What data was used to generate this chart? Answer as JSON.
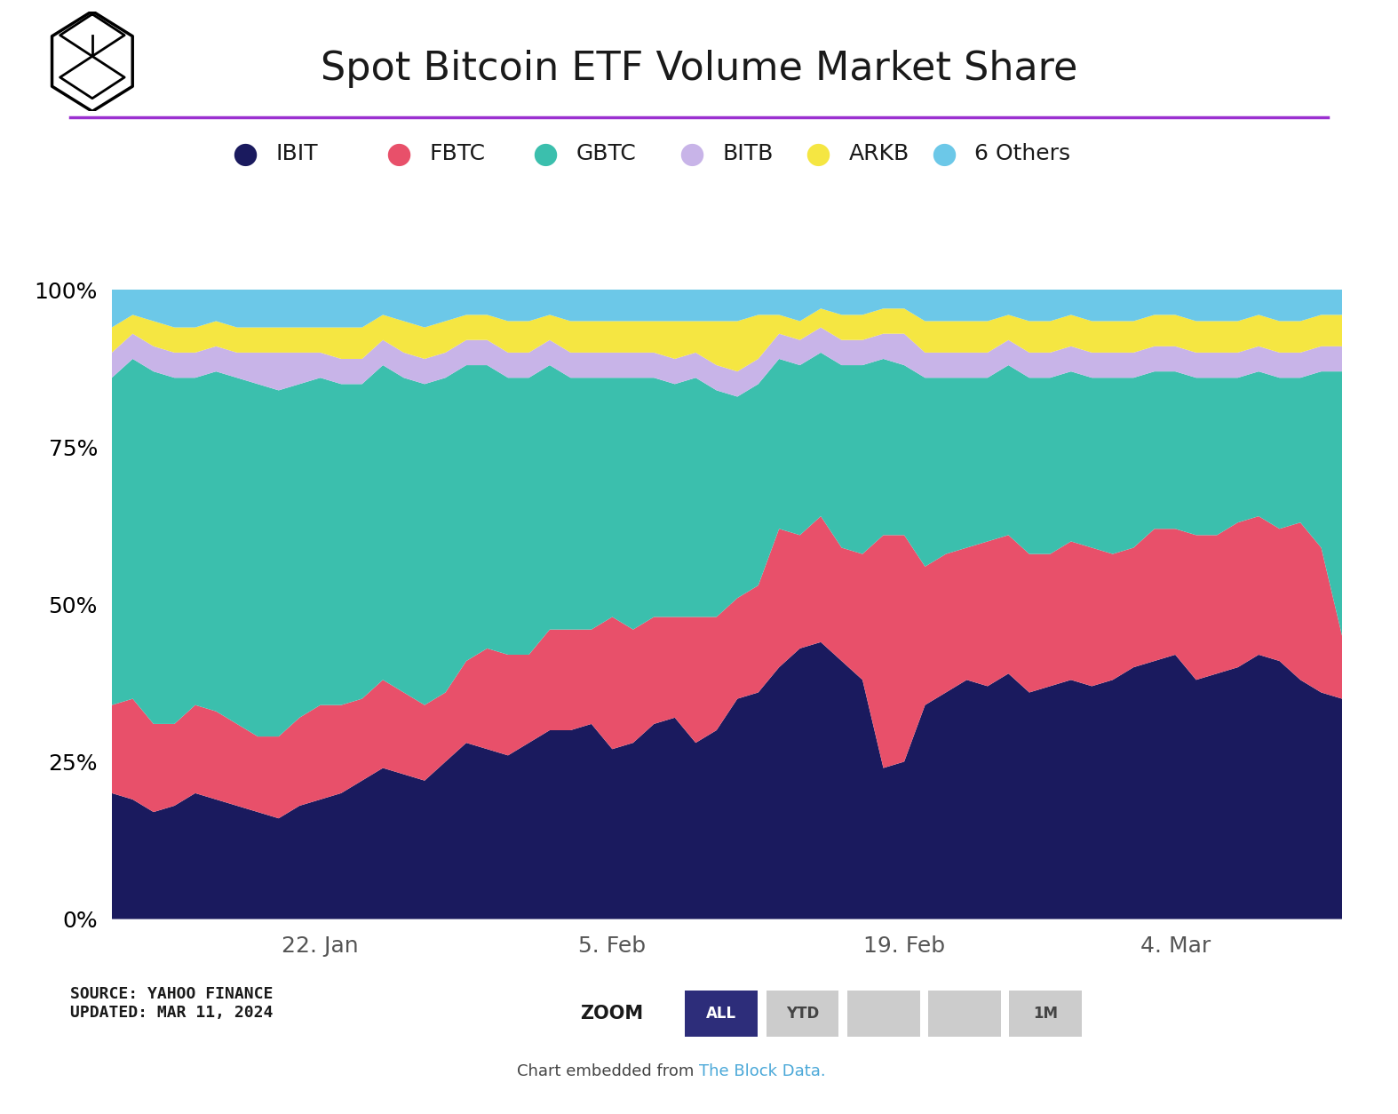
{
  "title": "Spot Bitcoin ETF Volume Market Share",
  "colors": {
    "IBIT": "#1a1a5e",
    "FBTC": "#e8506a",
    "GBTC": "#3bbfad",
    "BITB": "#c8b4e8",
    "ARKB": "#f5e642",
    "6 Others": "#6cc8e8"
  },
  "line_color": "#9b30d0",
  "source_text": "SOURCE: YAHOO FINANCE\nUPDATED: MAR 11, 2024",
  "zoom_buttons": [
    "ALL",
    "YTD",
    "",
    "",
    "1M"
  ],
  "x_labels": [
    "22. Jan",
    "5. Feb",
    "19. Feb",
    "4. Mar"
  ],
  "x_tick_positions": [
    10,
    24,
    38,
    51
  ],
  "background_color": "#ffffff",
  "tick_label_fontsize": 18,
  "title_fontsize": 32,
  "legend_fontsize": 18,
  "IBIT": [
    0.2,
    0.19,
    0.17,
    0.18,
    0.2,
    0.19,
    0.18,
    0.17,
    0.16,
    0.18,
    0.19,
    0.2,
    0.22,
    0.24,
    0.23,
    0.22,
    0.25,
    0.28,
    0.27,
    0.26,
    0.28,
    0.3,
    0.3,
    0.31,
    0.27,
    0.28,
    0.31,
    0.32,
    0.28,
    0.3,
    0.35,
    0.36,
    0.4,
    0.43,
    0.44,
    0.41,
    0.38,
    0.24,
    0.25,
    0.34,
    0.36,
    0.38,
    0.37,
    0.39,
    0.36,
    0.37,
    0.38,
    0.37,
    0.38,
    0.4,
    0.41,
    0.42,
    0.38,
    0.39,
    0.4,
    0.42,
    0.41,
    0.38,
    0.36,
    0.35
  ],
  "FBTC": [
    0.14,
    0.16,
    0.14,
    0.13,
    0.14,
    0.14,
    0.13,
    0.12,
    0.13,
    0.14,
    0.15,
    0.14,
    0.13,
    0.14,
    0.13,
    0.12,
    0.11,
    0.13,
    0.16,
    0.16,
    0.14,
    0.16,
    0.16,
    0.15,
    0.21,
    0.18,
    0.17,
    0.16,
    0.2,
    0.18,
    0.16,
    0.17,
    0.22,
    0.18,
    0.2,
    0.18,
    0.2,
    0.37,
    0.36,
    0.22,
    0.22,
    0.21,
    0.23,
    0.22,
    0.22,
    0.21,
    0.22,
    0.22,
    0.2,
    0.19,
    0.21,
    0.2,
    0.23,
    0.22,
    0.23,
    0.22,
    0.21,
    0.25,
    0.23,
    0.1
  ],
  "GBTC": [
    0.52,
    0.54,
    0.56,
    0.55,
    0.52,
    0.54,
    0.55,
    0.56,
    0.55,
    0.53,
    0.52,
    0.51,
    0.5,
    0.5,
    0.5,
    0.51,
    0.5,
    0.47,
    0.45,
    0.44,
    0.44,
    0.42,
    0.4,
    0.4,
    0.38,
    0.4,
    0.38,
    0.37,
    0.38,
    0.36,
    0.32,
    0.32,
    0.27,
    0.27,
    0.26,
    0.29,
    0.3,
    0.28,
    0.27,
    0.3,
    0.28,
    0.27,
    0.26,
    0.27,
    0.28,
    0.28,
    0.27,
    0.27,
    0.28,
    0.27,
    0.25,
    0.25,
    0.25,
    0.25,
    0.23,
    0.23,
    0.24,
    0.23,
    0.28,
    0.42
  ],
  "BITB": [
    0.04,
    0.04,
    0.04,
    0.04,
    0.04,
    0.04,
    0.04,
    0.05,
    0.06,
    0.05,
    0.04,
    0.04,
    0.04,
    0.04,
    0.04,
    0.04,
    0.04,
    0.04,
    0.04,
    0.04,
    0.04,
    0.04,
    0.04,
    0.04,
    0.04,
    0.04,
    0.04,
    0.04,
    0.04,
    0.04,
    0.04,
    0.04,
    0.04,
    0.04,
    0.04,
    0.04,
    0.04,
    0.04,
    0.05,
    0.04,
    0.04,
    0.04,
    0.04,
    0.04,
    0.04,
    0.04,
    0.04,
    0.04,
    0.04,
    0.04,
    0.04,
    0.04,
    0.04,
    0.04,
    0.04,
    0.04,
    0.04,
    0.04,
    0.04,
    0.04
  ],
  "ARKB": [
    0.04,
    0.03,
    0.04,
    0.04,
    0.04,
    0.04,
    0.04,
    0.04,
    0.04,
    0.04,
    0.04,
    0.05,
    0.05,
    0.04,
    0.05,
    0.05,
    0.05,
    0.04,
    0.04,
    0.05,
    0.05,
    0.04,
    0.05,
    0.05,
    0.05,
    0.05,
    0.05,
    0.06,
    0.05,
    0.07,
    0.08,
    0.07,
    0.03,
    0.03,
    0.03,
    0.04,
    0.04,
    0.04,
    0.04,
    0.05,
    0.05,
    0.05,
    0.05,
    0.04,
    0.05,
    0.05,
    0.05,
    0.05,
    0.05,
    0.05,
    0.05,
    0.05,
    0.05,
    0.05,
    0.05,
    0.05,
    0.05,
    0.05,
    0.05,
    0.05
  ],
  "6 Others": [
    0.06,
    0.04,
    0.05,
    0.06,
    0.06,
    0.05,
    0.06,
    0.06,
    0.06,
    0.06,
    0.06,
    0.06,
    0.06,
    0.04,
    0.05,
    0.06,
    0.05,
    0.04,
    0.04,
    0.05,
    0.05,
    0.04,
    0.05,
    0.05,
    0.05,
    0.05,
    0.05,
    0.05,
    0.05,
    0.05,
    0.05,
    0.04,
    0.04,
    0.05,
    0.03,
    0.04,
    0.04,
    0.03,
    0.03,
    0.05,
    0.05,
    0.05,
    0.05,
    0.04,
    0.05,
    0.05,
    0.04,
    0.05,
    0.05,
    0.05,
    0.04,
    0.04,
    0.05,
    0.05,
    0.05,
    0.04,
    0.05,
    0.05,
    0.04,
    0.04
  ]
}
